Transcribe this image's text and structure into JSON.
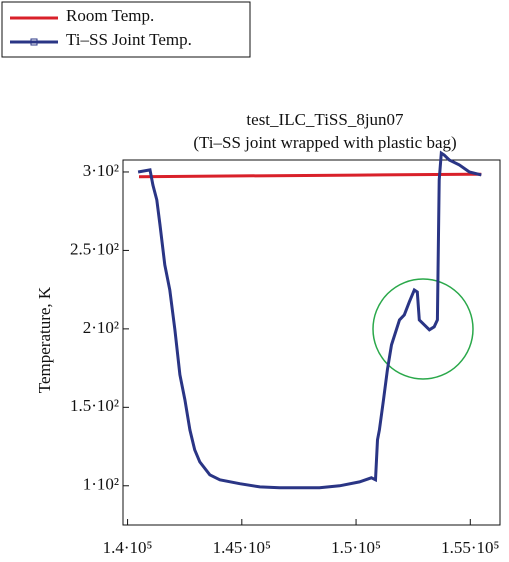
{
  "chart_data": {
    "type": "line",
    "title": "test_ILC_TiSS_8jun07",
    "subtitle": "(Ti–SS joint wrapped with plastic bag)",
    "y_label": "Temperature, K",
    "xlim": [
      139800,
      156300
    ],
    "ylim": [
      75,
      314
    ],
    "xticks": [
      {
        "value": 140000,
        "label": "1.4·10⁵"
      },
      {
        "value": 145000,
        "label": "1.45·10⁵"
      },
      {
        "value": 150000,
        "label": "1.5·10⁵"
      },
      {
        "value": 155000,
        "label": "1.55·10⁵"
      }
    ],
    "yticks": [
      {
        "value": 100,
        "label": "1·10²"
      },
      {
        "value": 150,
        "label": "1.5·10²"
      },
      {
        "value": 200,
        "label": "2·10²"
      },
      {
        "value": 250,
        "label": "2.5·10²"
      },
      {
        "value": 300,
        "label": "3·10²"
      }
    ],
    "legend": "top-left",
    "series": [
      {
        "name": "Room Temp.",
        "color": "#d9202a",
        "x": [
          140500,
          145000,
          150000,
          155000,
          155480
        ],
        "values": [
          297,
          297.5,
          298,
          298.5,
          298.5
        ]
      },
      {
        "name": "Ti–SS Joint Temp.",
        "color": "#2a3585",
        "x": [
          140460,
          140980,
          141110,
          141280,
          141420,
          141630,
          141850,
          142070,
          142290,
          142510,
          142730,
          142940,
          143160,
          143600,
          144040,
          144910,
          145790,
          146660,
          147530,
          148400,
          149280,
          150150,
          150670,
          150850,
          150940,
          151020,
          151200,
          151370,
          151550,
          151900,
          152110,
          152330,
          152550,
          152680,
          152770,
          152990,
          153210,
          153420,
          153560,
          153640,
          153730,
          153860,
          154080,
          154520,
          154960,
          155480
        ],
        "values": [
          300,
          301.3,
          291.7,
          282.2,
          266.2,
          240.8,
          224.8,
          199.4,
          170.7,
          154.8,
          135.6,
          122.9,
          115.2,
          107,
          103.8,
          101.3,
          99.3,
          98.7,
          98.7,
          98.7,
          100,
          102.5,
          105.1,
          103.8,
          129.3,
          135.6,
          154.8,
          173.9,
          189.8,
          205.7,
          208.9,
          217.2,
          224.8,
          223.5,
          205.7,
          202.5,
          199.4,
          201.3,
          205.7,
          294.9,
          312,
          310.8,
          307.6,
          304.5,
          300,
          298.1
        ]
      }
    ]
  }
}
